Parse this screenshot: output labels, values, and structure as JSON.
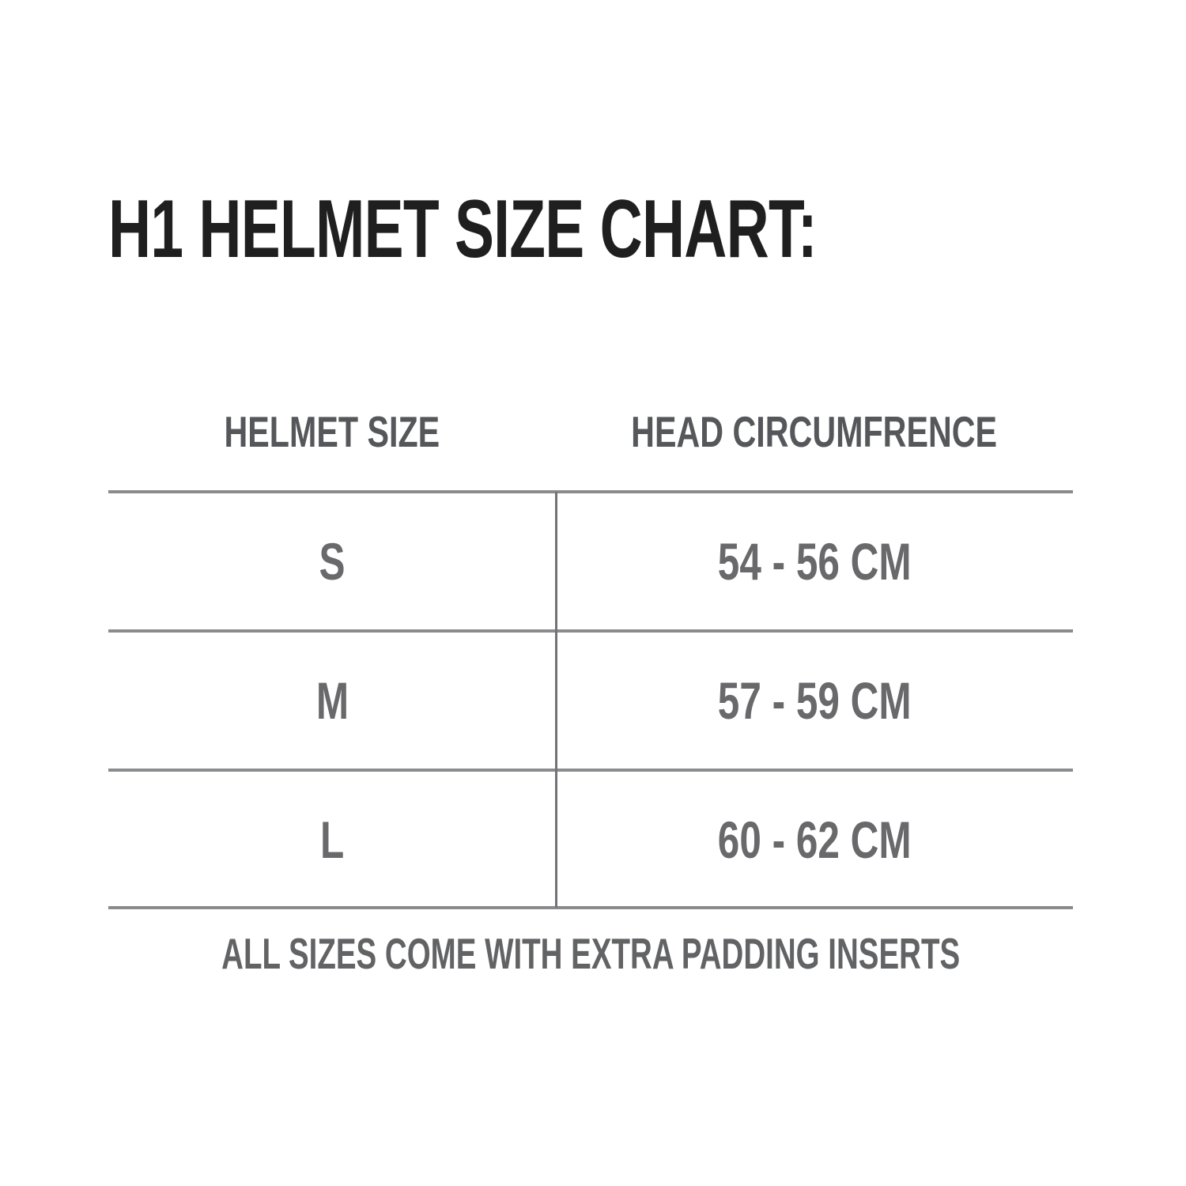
{
  "title": "H1 HELMET SIZE CHART:",
  "chart_data": {
    "type": "table",
    "title": "H1 HELMET SIZE CHART:",
    "columns": [
      "HELMET SIZE",
      "HEAD CIRCUMFRENCE"
    ],
    "rows": [
      [
        "S",
        "54 - 56 CM"
      ],
      [
        "M",
        "57 - 59 CM"
      ],
      [
        "L",
        "60 - 62 CM"
      ]
    ],
    "footnote": "ALL SIZES COME WITH EXTRA PADDING INSERTS"
  },
  "colors": {
    "background": "#ffffff",
    "title_text": "#1f1f20",
    "header_text": "#56575a",
    "cell_text": "#69696c",
    "footnote_text": "#626365",
    "grid_line": "#8a8b8d",
    "divider_line": "#737376"
  }
}
